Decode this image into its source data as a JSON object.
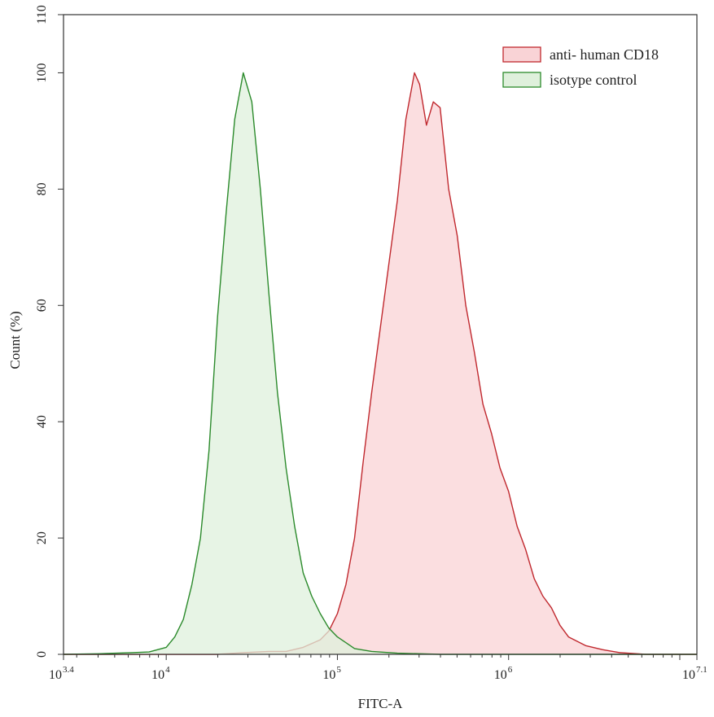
{
  "chart_data": {
    "type": "area",
    "xlabel": "FITC-A",
    "ylabel": "Count (%)",
    "x_scale": "log10",
    "xlim": [
      3.4,
      7.1
    ],
    "ylim": [
      0,
      110
    ],
    "x_ticks": [
      {
        "base": "10",
        "exp": "3.4",
        "pos": 3.4
      },
      {
        "base": "10",
        "exp": "4",
        "pos": 4
      },
      {
        "base": "10",
        "exp": "5",
        "pos": 5
      },
      {
        "base": "10",
        "exp": "6",
        "pos": 6
      },
      {
        "base": "10",
        "exp": "7.1",
        "pos": 7.1
      }
    ],
    "y_ticks": [
      "0",
      "20",
      "40",
      "60",
      "80",
      "100",
      "110"
    ],
    "legend_position": "top-right",
    "series": [
      {
        "name": "anti- human CD18",
        "stroke": "#c0282e",
        "fill": "#f9d3d6",
        "points": [
          [
            3.4,
            0
          ],
          [
            4.3,
            0
          ],
          [
            4.45,
            0.3
          ],
          [
            4.6,
            0.5
          ],
          [
            4.7,
            0.5
          ],
          [
            4.8,
            1.2
          ],
          [
            4.9,
            2.5
          ],
          [
            4.95,
            4
          ],
          [
            5.0,
            7
          ],
          [
            5.05,
            12
          ],
          [
            5.1,
            20
          ],
          [
            5.15,
            33
          ],
          [
            5.2,
            45
          ],
          [
            5.25,
            56
          ],
          [
            5.3,
            67
          ],
          [
            5.35,
            78
          ],
          [
            5.4,
            92
          ],
          [
            5.45,
            100
          ],
          [
            5.48,
            98
          ],
          [
            5.52,
            91
          ],
          [
            5.56,
            95
          ],
          [
            5.6,
            94
          ],
          [
            5.65,
            80
          ],
          [
            5.7,
            72
          ],
          [
            5.75,
            60
          ],
          [
            5.8,
            52
          ],
          [
            5.85,
            43
          ],
          [
            5.9,
            38
          ],
          [
            5.95,
            32
          ],
          [
            6.0,
            28
          ],
          [
            6.05,
            22
          ],
          [
            6.1,
            18
          ],
          [
            6.15,
            13
          ],
          [
            6.2,
            10
          ],
          [
            6.25,
            8
          ],
          [
            6.3,
            5
          ],
          [
            6.35,
            3
          ],
          [
            6.45,
            1.5
          ],
          [
            6.55,
            0.8
          ],
          [
            6.65,
            0.3
          ],
          [
            6.8,
            0
          ],
          [
            7.1,
            0
          ]
        ]
      },
      {
        "name": "isotype control",
        "stroke": "#2b8a2b",
        "fill": "#dff0dc",
        "points": [
          [
            3.4,
            0
          ],
          [
            3.6,
            0.1
          ],
          [
            3.8,
            0.3
          ],
          [
            3.9,
            0.4
          ],
          [
            4.0,
            1.2
          ],
          [
            4.05,
            3
          ],
          [
            4.1,
            6
          ],
          [
            4.15,
            12
          ],
          [
            4.2,
            20
          ],
          [
            4.25,
            35
          ],
          [
            4.3,
            58
          ],
          [
            4.35,
            76
          ],
          [
            4.4,
            92
          ],
          [
            4.45,
            100
          ],
          [
            4.5,
            95
          ],
          [
            4.55,
            80
          ],
          [
            4.6,
            62
          ],
          [
            4.65,
            45
          ],
          [
            4.7,
            32
          ],
          [
            4.75,
            22
          ],
          [
            4.8,
            14
          ],
          [
            4.85,
            10
          ],
          [
            4.9,
            7
          ],
          [
            4.95,
            4.5
          ],
          [
            5.0,
            3
          ],
          [
            5.05,
            2
          ],
          [
            5.1,
            1
          ],
          [
            5.2,
            0.5
          ],
          [
            5.35,
            0.2
          ],
          [
            5.6,
            0
          ],
          [
            7.1,
            0
          ]
        ]
      }
    ]
  }
}
